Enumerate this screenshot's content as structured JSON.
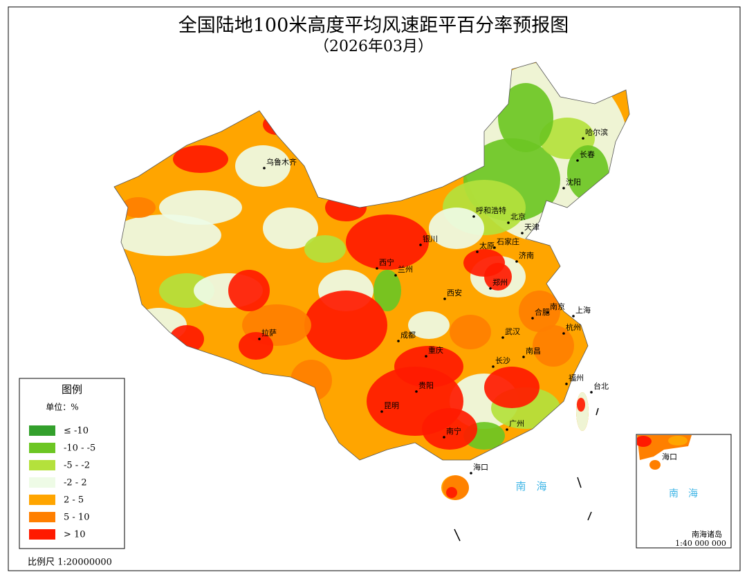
{
  "header": {
    "title": "全国陆地100米高度平均风速距平百分率预报图",
    "subtitle": "（2026年03月）"
  },
  "legend": {
    "title": "图例",
    "unit": "单位：%",
    "items": [
      {
        "label": "≤ -10",
        "color": "#33a02c"
      },
      {
        "label": "-10 - -5",
        "color": "#6cc623"
      },
      {
        "label": "-5 - -2",
        "color": "#b4e13c"
      },
      {
        "label": "-2 - 2",
        "color": "#eefbe6"
      },
      {
        "label": "2 - 5",
        "color": "#ffa500"
      },
      {
        "label": "5 - 10",
        "color": "#ff7f00"
      },
      {
        "label": "> 10",
        "color": "#ff1a00"
      }
    ]
  },
  "cities": [
    "乌鲁木齐",
    "哈尔滨",
    "长春",
    "沈阳",
    "呼和浩特",
    "北京",
    "天津",
    "太原",
    "石家庄",
    "济南",
    "郑州",
    "西安",
    "南京",
    "合肥",
    "上海",
    "武汉",
    "杭州",
    "南昌",
    "长沙",
    "福州",
    "台北",
    "成都",
    "重庆",
    "贵阳",
    "昆明",
    "拉萨",
    "南宁",
    "广州",
    "海口",
    "银川",
    "西宁",
    "兰州"
  ],
  "sea_label": "南　海",
  "scale": "比例尺 1:20000000",
  "inset": {
    "sea_label": "南　海",
    "city": "海口",
    "title": "南海诸岛",
    "scale": "1:40 000 000"
  }
}
